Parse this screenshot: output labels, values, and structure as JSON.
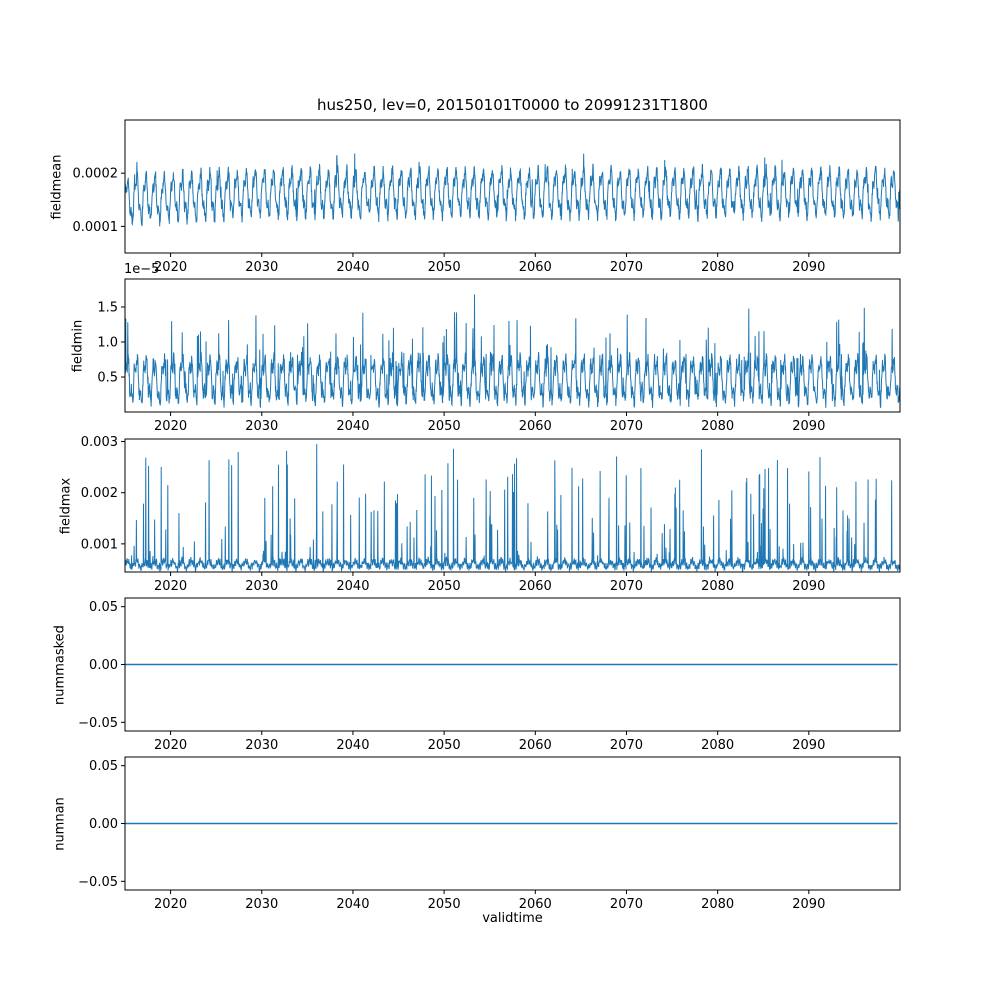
{
  "figure": {
    "title": "hus250, lev=0, 20150101T0000 to 20991231T1800",
    "xlabel": "validtime",
    "background": "#ffffff",
    "line_color": "#1f77b4",
    "axis_color": "#000000"
  },
  "chart_data": [
    {
      "type": "line",
      "ylabel": "fieldmean",
      "xlim": [
        2015,
        2100
      ],
      "x_ticks": [
        2020,
        2030,
        2040,
        2050,
        2060,
        2070,
        2080,
        2090
      ],
      "x_tick_labels": [
        "2020",
        "2030",
        "2040",
        "2050",
        "2060",
        "2070",
        "2080",
        "2090"
      ],
      "ylim": [
        5e-05,
        0.0003
      ],
      "y_ticks": [
        0.0001,
        0.0002
      ],
      "y_tick_labels": [
        "0.0001",
        "0.0002"
      ],
      "offset_text": "",
      "grid": false,
      "legend": "none",
      "series_model": {
        "kind": "osc",
        "description": "dense annual oscillation, values ~0.00008-0.00028, slight upward trend 2015-2030, occasional peaks near 0.00028",
        "points_per_year": 36,
        "base": 0.00015,
        "trend": 1.3e-05,
        "trend_years": 15,
        "a1": 3.6e-05,
        "a2": 1.3e-05,
        "f2": 3,
        "p2": 1.3,
        "noise": 1.1e-05,
        "spike_prob": 0.02,
        "spike_amp": 5e-05,
        "spike_pow": 1.5,
        "lo": 7e-05,
        "hi": 0.00029
      }
    },
    {
      "type": "line",
      "ylabel": "fieldmin",
      "xlim": [
        2015,
        2100
      ],
      "x_ticks": [
        2020,
        2030,
        2040,
        2050,
        2060,
        2070,
        2080,
        2090
      ],
      "x_tick_labels": [
        "2020",
        "2030",
        "2040",
        "2050",
        "2060",
        "2070",
        "2080",
        "2090"
      ],
      "ylim": [
        0,
        1.9e-05
      ],
      "y_ticks": [
        5e-06,
        1e-05,
        1.5e-05
      ],
      "y_tick_labels": [
        "0.5",
        "1.0",
        "1.5"
      ],
      "offset_text": "1e−5",
      "grid": false,
      "legend": "none",
      "series_model": {
        "kind": "osc",
        "description": "spiky annual series, dense band 0.1e-5 to 0.9e-5, regular spikes to 1.3-1.5e-5, rare peaks near 1.8e-5",
        "points_per_year": 36,
        "base": 4.6e-06,
        "trend": 0,
        "trend_years": 1,
        "a1": 2.6e-06,
        "a2": 1.2e-06,
        "f2": 3,
        "p2": 0.7,
        "noise": 9e-07,
        "spike_prob": 0.05,
        "spike_amp": 8.5e-06,
        "spike_pow": 1.2,
        "lo": 4e-07,
        "hi": 1.85e-05
      }
    },
    {
      "type": "line",
      "ylabel": "fieldmax",
      "xlim": [
        2015,
        2100
      ],
      "x_ticks": [
        2020,
        2030,
        2040,
        2050,
        2060,
        2070,
        2080,
        2090
      ],
      "x_tick_labels": [
        "2020",
        "2030",
        "2040",
        "2050",
        "2060",
        "2070",
        "2080",
        "2090"
      ],
      "ylim": [
        0.00045,
        0.00305
      ],
      "y_ticks": [
        0.001,
        0.002,
        0.003
      ],
      "y_tick_labels": [
        "0.001",
        "0.002",
        "0.003"
      ],
      "offset_text": "",
      "grid": false,
      "legend": "none",
      "series_model": {
        "kind": "osc",
        "description": "baseline ~0.0005-0.0008 with frequent upward spikes 0.001-0.002, rare peaks near 0.0029",
        "points_per_year": 36,
        "base": 0.0006,
        "trend": 0,
        "trend_years": 1,
        "a1": 6e-05,
        "a2": 4e-05,
        "f2": 5,
        "p2": 0.3,
        "noise": 5e-05,
        "spike_prob": 0.06,
        "spike_amp": 0.0023,
        "spike_pow": 1.5,
        "lo": 0.00046,
        "hi": 0.00295
      }
    },
    {
      "type": "line",
      "ylabel": "nummasked",
      "xlim": [
        2015,
        2100
      ],
      "x_ticks": [
        2020,
        2030,
        2040,
        2050,
        2060,
        2070,
        2080,
        2090
      ],
      "x_tick_labels": [
        "2020",
        "2030",
        "2040",
        "2050",
        "2060",
        "2070",
        "2080",
        "2090"
      ],
      "ylim": [
        -0.0575,
        0.0575
      ],
      "y_ticks": [
        -0.05,
        0,
        0.05
      ],
      "y_tick_labels": [
        "−0.05",
        "0.00",
        "0.05"
      ],
      "offset_text": "",
      "grid": false,
      "legend": "none",
      "series_model": {
        "kind": "flat",
        "description": "constant zero line",
        "points_per_year": 4,
        "value": 0
      }
    },
    {
      "type": "line",
      "ylabel": "numnan",
      "xlim": [
        2015,
        2100
      ],
      "x_ticks": [
        2020,
        2030,
        2040,
        2050,
        2060,
        2070,
        2080,
        2090
      ],
      "x_tick_labels": [
        "2020",
        "2030",
        "2040",
        "2050",
        "2060",
        "2070",
        "2080",
        "2090"
      ],
      "ylim": [
        -0.0575,
        0.0575
      ],
      "y_ticks": [
        -0.05,
        0,
        0.05
      ],
      "y_tick_labels": [
        "−0.05",
        "0.00",
        "0.05"
      ],
      "offset_text": "",
      "grid": false,
      "legend": "none",
      "series_model": {
        "kind": "flat",
        "description": "constant zero line",
        "points_per_year": 4,
        "value": 0
      }
    }
  ]
}
